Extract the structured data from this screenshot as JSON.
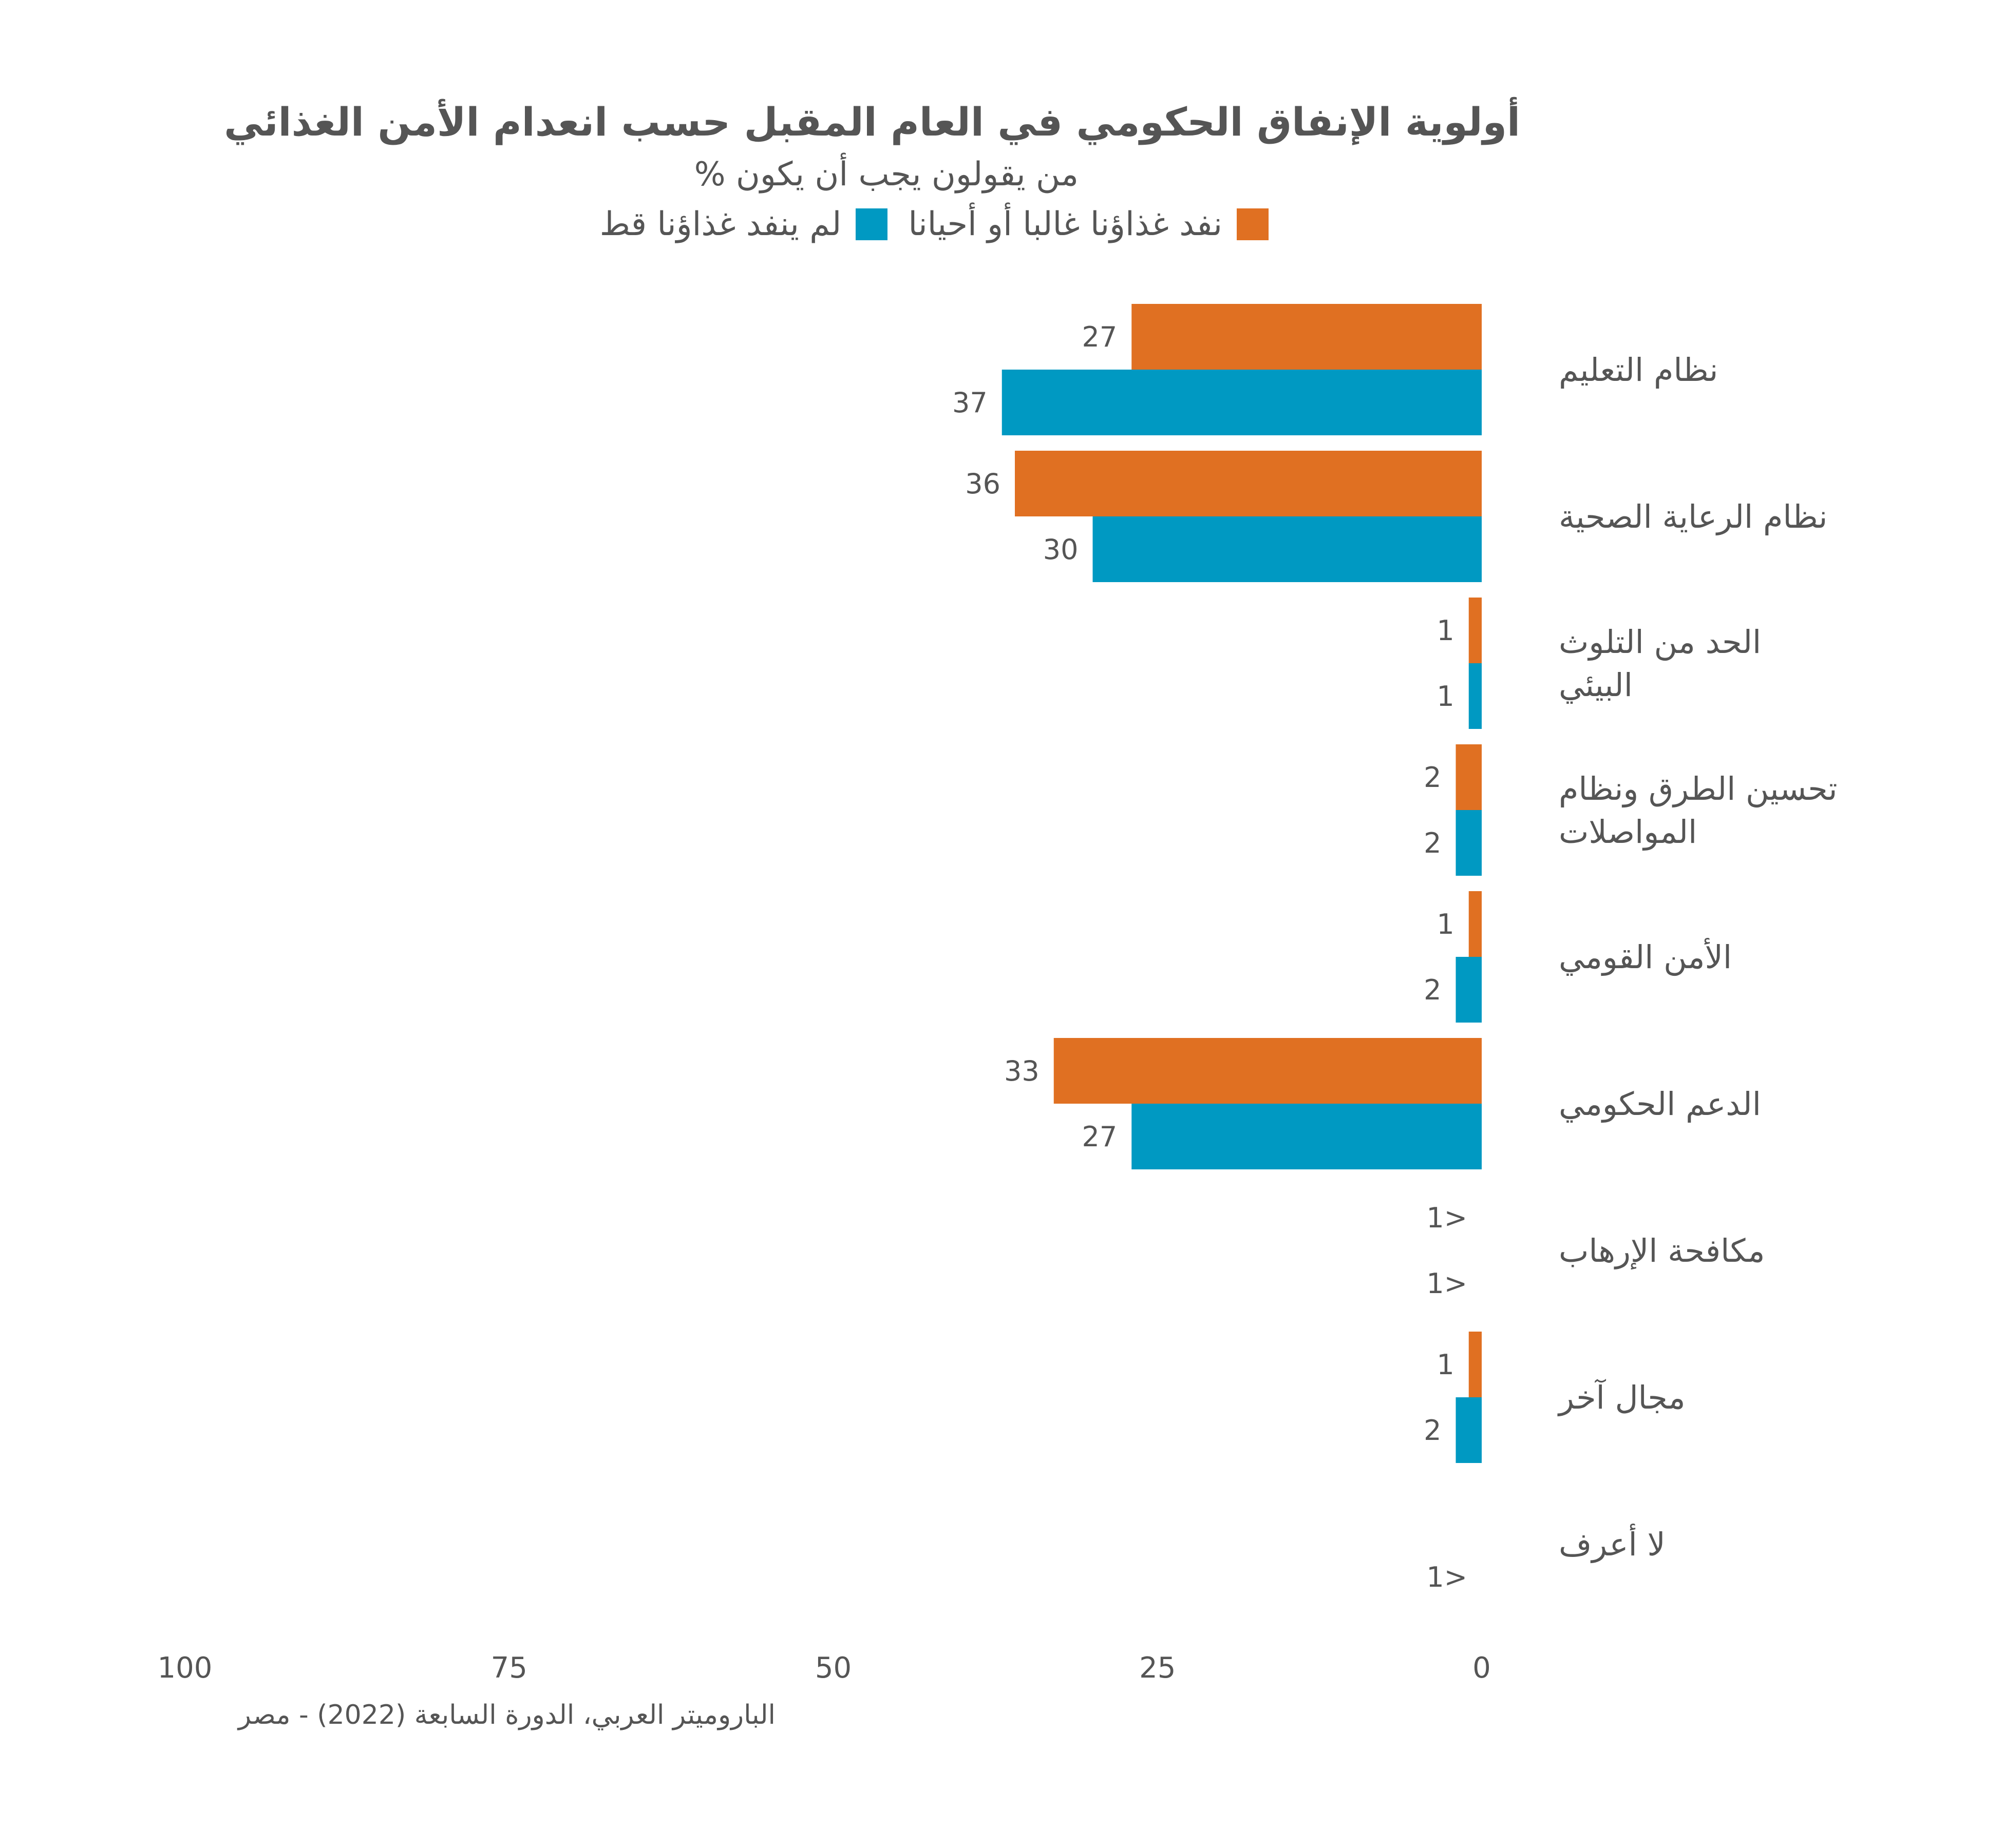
{
  "chart_data": {
    "type": "bar",
    "orientation": "horizontal",
    "title": "أولوية الإنفاق الحكومي في العام المقبل حسب انعدام الأمن الغذائي",
    "subtitle": "% من يقولون يجب أن يكون",
    "source": "الباروميتر العربي، الدورة السابعة (2022) -  مصر",
    "categories": [
      [
        "نظام التعليم"
      ],
      [
        "نظام الرعاية الصحية"
      ],
      [
        "الحد من التلوث",
        "البيئي"
      ],
      [
        "تحسين الطرق ونظام",
        "المواصلات"
      ],
      [
        "الأمن القومي"
      ],
      [
        "الدعم الحكومي"
      ],
      [
        "مكافحة الإرهاب"
      ],
      [
        "مجال آخر"
      ],
      [
        "لا أعرف"
      ]
    ],
    "series": [
      {
        "name": "نفد غذاؤنا غالبا أو أحيانا",
        "color": "#e07022",
        "values": [
          27,
          36,
          1,
          2,
          1,
          33,
          0,
          1,
          null
        ],
        "labels": [
          "27",
          "36",
          "1",
          "2",
          "1",
          "33",
          "1>",
          "1",
          ""
        ]
      },
      {
        "name": "لم ينفد غذاؤنا قط",
        "color": "#0099c2",
        "values": [
          37,
          30,
          1,
          2,
          2,
          27,
          0,
          2,
          0
        ],
        "labels": [
          "37",
          "30",
          "1",
          "2",
          "2",
          "27",
          "1>",
          "2",
          "1>"
        ]
      }
    ],
    "xlim": [
      0,
      100
    ],
    "xticks": [
      "100",
      "75",
      "50",
      "25",
      "0"
    ],
    "x_direction": "right-to-left",
    "grid": false,
    "legend_position": "top"
  }
}
